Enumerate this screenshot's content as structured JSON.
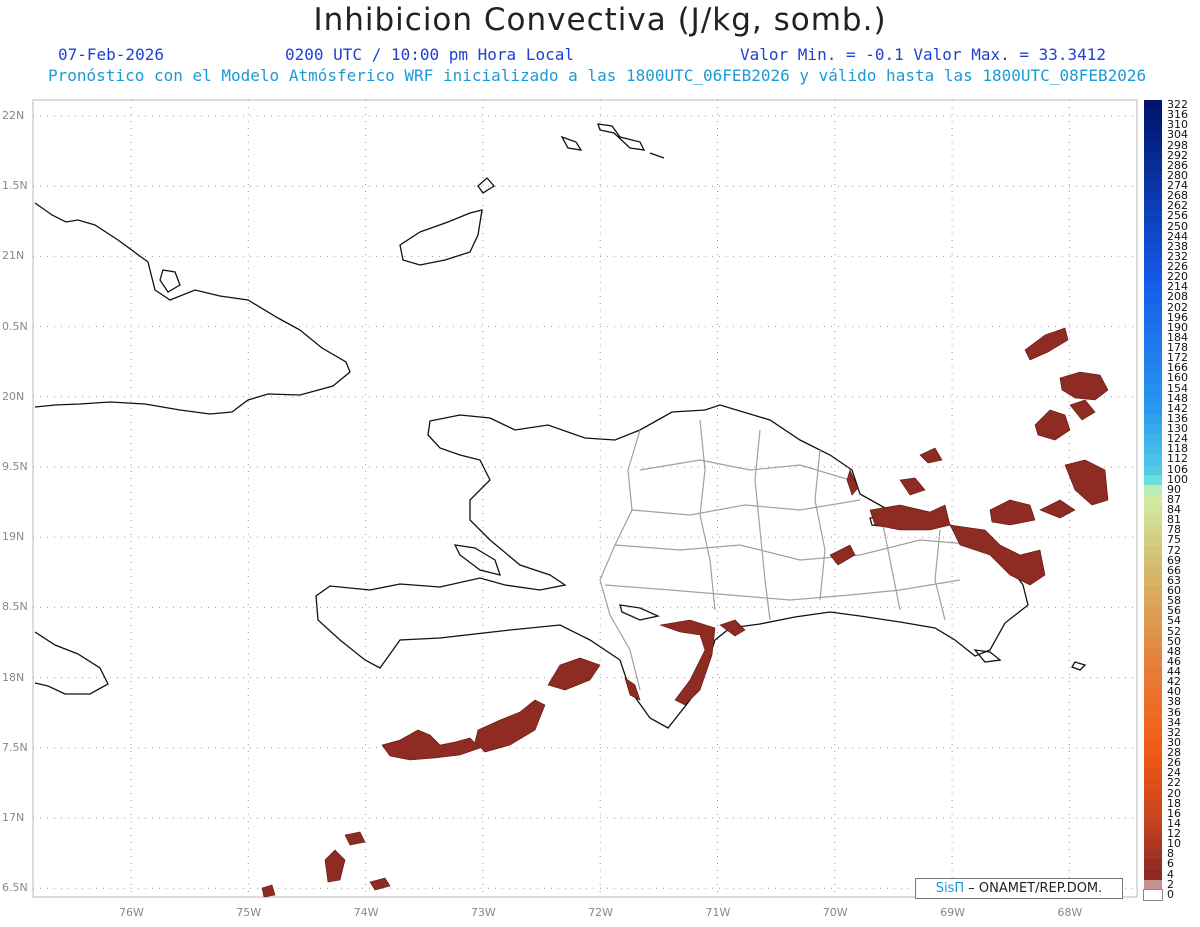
{
  "header": {
    "title": "Inhibicion Convectiva (J/kg, somb.)",
    "date": "07-Feb-2026",
    "time": "0200 UTC / 10:00 pm Hora Local",
    "minmax": "Valor Min. = -0.1  Valor Max. = 33.3412",
    "subtitle": "Pronóstico con el Modelo Atmósferico WRF inicializado a las 1800UTC_06FEB2026 y válido hasta las  1800UTC_08FEB2026"
  },
  "credit": {
    "brand": "SisΠ",
    "text": "– ONAMET/REP.DOM."
  },
  "lat_labels": [
    "22N",
    "1.5N",
    "21N",
    "0.5N",
    "20N",
    "9.5N",
    "19N",
    "8.5N",
    "18N",
    "7.5N",
    "17N",
    "6.5N"
  ],
  "lon_labels": [
    "76W",
    "75W",
    "74W",
    "73W",
    "72W",
    "71W",
    "70W",
    "69W",
    "68W"
  ],
  "legend": {
    "labels": [
      "322",
      "316",
      "310",
      "304",
      "298",
      "292",
      "286",
      "280",
      "274",
      "268",
      "262",
      "256",
      "250",
      "244",
      "238",
      "232",
      "226",
      "220",
      "214",
      "208",
      "202",
      "196",
      "190",
      "184",
      "178",
      "172",
      "166",
      "160",
      "154",
      "148",
      "142",
      "136",
      "130",
      "124",
      "118",
      "112",
      "106",
      "100",
      "90",
      "87",
      "84",
      "81",
      "78",
      "75",
      "72",
      "69",
      "66",
      "63",
      "60",
      "58",
      "56",
      "54",
      "52",
      "50",
      "48",
      "46",
      "44",
      "42",
      "40",
      "38",
      "36",
      "34",
      "32",
      "30",
      "28",
      "26",
      "24",
      "22",
      "20",
      "18",
      "16",
      "14",
      "12",
      "10",
      "8",
      "6",
      "4",
      "2",
      "0"
    ]
  },
  "colors": {
    "cin_fill": "#8e2b22",
    "coast": "#111111",
    "province": "#a0a0a0",
    "grid": "#999999"
  }
}
